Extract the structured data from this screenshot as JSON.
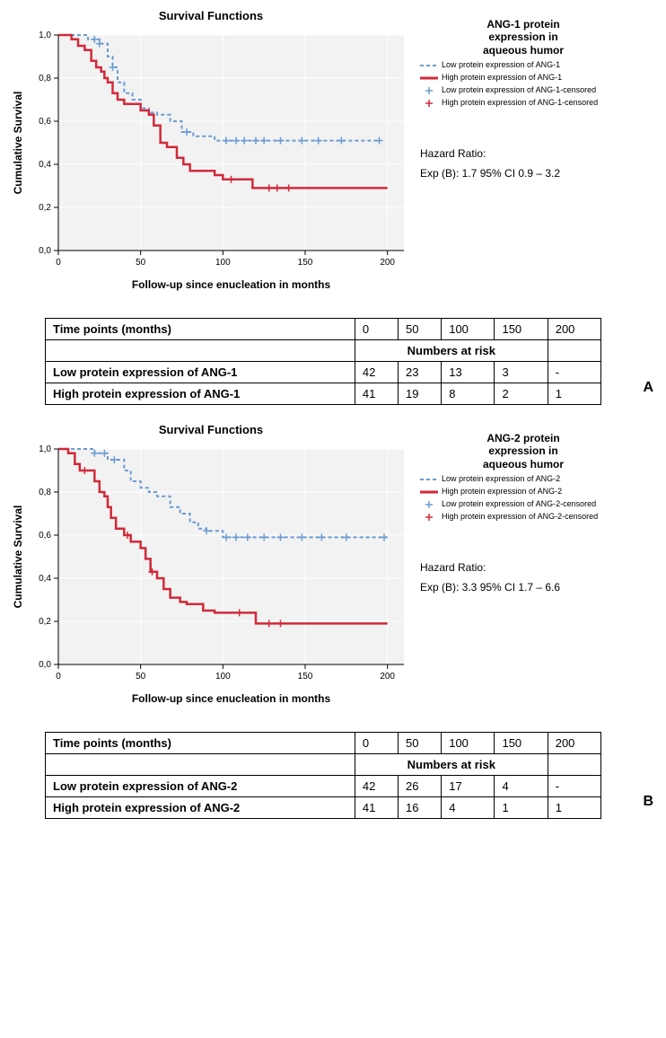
{
  "panels": [
    {
      "letter": "A",
      "chart": {
        "type": "kaplan-meier",
        "title": "Survival Functions",
        "xlabel": "Follow-up since enucleation in months",
        "ylabel": "Cumulative Survival",
        "xlim": [
          0,
          210
        ],
        "ylim": [
          0,
          1.0
        ],
        "xticks": [
          0,
          50,
          100,
          150,
          200
        ],
        "yticks": [
          0.0,
          0.2,
          0.4,
          0.6,
          0.8,
          1.0
        ],
        "background_color": "#f2f2f2",
        "grid_color": "#ffffff",
        "axis_color": "#000000",
        "title_fontsize": 13,
        "label_fontsize": 12,
        "tick_fontsize": 10,
        "series": [
          {
            "id": "low",
            "color": "#6b9bd1",
            "dash": "4,3",
            "width": 2,
            "steps": [
              [
                0,
                1.0
              ],
              [
                10,
                1.0
              ],
              [
                18,
                0.98
              ],
              [
                22,
                0.98
              ],
              [
                25,
                0.96
              ],
              [
                28,
                0.96
              ],
              [
                30,
                0.9
              ],
              [
                33,
                0.85
              ],
              [
                36,
                0.78
              ],
              [
                40,
                0.73
              ],
              [
                45,
                0.7
              ],
              [
                50,
                0.66
              ],
              [
                55,
                0.64
              ],
              [
                60,
                0.63
              ],
              [
                68,
                0.6
              ],
              [
                75,
                0.55
              ],
              [
                82,
                0.53
              ],
              [
                90,
                0.53
              ],
              [
                95,
                0.51
              ],
              [
                100,
                0.51
              ],
              [
                115,
                0.51
              ],
              [
                118,
                0.51
              ],
              [
                130,
                0.51
              ],
              [
                150,
                0.51
              ],
              [
                170,
                0.51
              ],
              [
                195,
                0.51
              ]
            ],
            "censored": [
              [
                22,
                0.98
              ],
              [
                25,
                0.96
              ],
              [
                33,
                0.85
              ],
              [
                78,
                0.55
              ],
              [
                102,
                0.51
              ],
              [
                108,
                0.51
              ],
              [
                113,
                0.51
              ],
              [
                120,
                0.51
              ],
              [
                125,
                0.51
              ],
              [
                135,
                0.51
              ],
              [
                148,
                0.51
              ],
              [
                158,
                0.51
              ],
              [
                172,
                0.51
              ],
              [
                195,
                0.51
              ]
            ]
          },
          {
            "id": "high",
            "color": "#d12a3a",
            "dash": "none",
            "width": 2.5,
            "steps": [
              [
                0,
                1.0
              ],
              [
                8,
                0.98
              ],
              [
                12,
                0.95
              ],
              [
                16,
                0.93
              ],
              [
                20,
                0.88
              ],
              [
                23,
                0.85
              ],
              [
                26,
                0.83
              ],
              [
                28,
                0.8
              ],
              [
                30,
                0.78
              ],
              [
                33,
                0.73
              ],
              [
                36,
                0.7
              ],
              [
                40,
                0.68
              ],
              [
                50,
                0.65
              ],
              [
                55,
                0.63
              ],
              [
                58,
                0.58
              ],
              [
                62,
                0.5
              ],
              [
                66,
                0.48
              ],
              [
                72,
                0.43
              ],
              [
                76,
                0.4
              ],
              [
                80,
                0.37
              ],
              [
                95,
                0.35
              ],
              [
                100,
                0.33
              ],
              [
                115,
                0.33
              ],
              [
                118,
                0.29
              ],
              [
                145,
                0.29
              ],
              [
                200,
                0.29
              ]
            ],
            "censored": [
              [
                105,
                0.33
              ],
              [
                128,
                0.29
              ],
              [
                133,
                0.29
              ],
              [
                140,
                0.29
              ]
            ]
          }
        ]
      },
      "legend": {
        "title": "ANG-1 protein\nexpression in\naqueous humor",
        "items": [
          {
            "swatch": "line",
            "color": "#6b9bd1",
            "dash": "4,3",
            "width": 2,
            "label": "Low protein expression of ANG-1"
          },
          {
            "swatch": "line",
            "color": "#d12a3a",
            "dash": "none",
            "width": 3,
            "label": "High protein expression of ANG-1"
          },
          {
            "swatch": "tick",
            "color": "#6b9bd1",
            "label": "Low protein expression of ANG-1-censored"
          },
          {
            "swatch": "tick",
            "color": "#d12a3a",
            "label": "High protein expression of ANG-1-censored"
          }
        ]
      },
      "hazard": {
        "label": "Hazard Ratio:",
        "value": "Exp (B): 1.7 95% CI 0.9 – 3.2"
      },
      "table": {
        "header": "Time points (months)",
        "subheader": "Numbers at risk",
        "cols": [
          "0",
          "50",
          "100",
          "150",
          "200"
        ],
        "rows": [
          {
            "label": "Low protein expression of ANG-1",
            "vals": [
              "42",
              "23",
              "13",
              "3",
              "-"
            ]
          },
          {
            "label": "High protein expression of ANG-1",
            "vals": [
              "41",
              "19",
              "8",
              "2",
              "1"
            ]
          }
        ]
      }
    },
    {
      "letter": "B",
      "chart": {
        "type": "kaplan-meier",
        "title": "Survival Functions",
        "xlabel": "Follow-up since enucleation in months",
        "ylabel": "Cumulative Survival",
        "xlim": [
          0,
          210
        ],
        "ylim": [
          0,
          1.0
        ],
        "xticks": [
          0,
          50,
          100,
          150,
          200
        ],
        "yticks": [
          0.0,
          0.2,
          0.4,
          0.6,
          0.8,
          1.0
        ],
        "background_color": "#f2f2f2",
        "grid_color": "#ffffff",
        "axis_color": "#000000",
        "title_fontsize": 13,
        "label_fontsize": 12,
        "tick_fontsize": 10,
        "series": [
          {
            "id": "low",
            "color": "#6b9bd1",
            "dash": "4,3",
            "width": 2,
            "steps": [
              [
                0,
                1.0
              ],
              [
                15,
                1.0
              ],
              [
                22,
                0.98
              ],
              [
                26,
                0.98
              ],
              [
                30,
                0.95
              ],
              [
                40,
                0.9
              ],
              [
                44,
                0.85
              ],
              [
                50,
                0.82
              ],
              [
                55,
                0.8
              ],
              [
                60,
                0.78
              ],
              [
                68,
                0.73
              ],
              [
                74,
                0.7
              ],
              [
                80,
                0.66
              ],
              [
                85,
                0.63
              ],
              [
                90,
                0.62
              ],
              [
                95,
                0.62
              ],
              [
                100,
                0.59
              ],
              [
                110,
                0.59
              ],
              [
                130,
                0.59
              ],
              [
                150,
                0.59
              ],
              [
                175,
                0.59
              ],
              [
                200,
                0.59
              ]
            ],
            "censored": [
              [
                22,
                0.98
              ],
              [
                28,
                0.98
              ],
              [
                34,
                0.95
              ],
              [
                90,
                0.62
              ],
              [
                102,
                0.59
              ],
              [
                108,
                0.59
              ],
              [
                115,
                0.59
              ],
              [
                125,
                0.59
              ],
              [
                135,
                0.59
              ],
              [
                148,
                0.59
              ],
              [
                160,
                0.59
              ],
              [
                175,
                0.59
              ],
              [
                198,
                0.59
              ]
            ]
          },
          {
            "id": "high",
            "color": "#d12a3a",
            "dash": "none",
            "width": 2.5,
            "steps": [
              [
                0,
                1.0
              ],
              [
                6,
                0.98
              ],
              [
                10,
                0.93
              ],
              [
                13,
                0.9
              ],
              [
                20,
                0.9
              ],
              [
                22,
                0.85
              ],
              [
                25,
                0.8
              ],
              [
                28,
                0.78
              ],
              [
                30,
                0.73
              ],
              [
                32,
                0.68
              ],
              [
                35,
                0.63
              ],
              [
                40,
                0.6
              ],
              [
                44,
                0.57
              ],
              [
                50,
                0.54
              ],
              [
                53,
                0.49
              ],
              [
                56,
                0.43
              ],
              [
                60,
                0.4
              ],
              [
                64,
                0.35
              ],
              [
                68,
                0.31
              ],
              [
                74,
                0.29
              ],
              [
                78,
                0.28
              ],
              [
                88,
                0.25
              ],
              [
                95,
                0.24
              ],
              [
                115,
                0.24
              ],
              [
                120,
                0.19
              ],
              [
                150,
                0.19
              ],
              [
                200,
                0.19
              ]
            ],
            "censored": [
              [
                16,
                0.9
              ],
              [
                42,
                0.6
              ],
              [
                57,
                0.43
              ],
              [
                110,
                0.24
              ],
              [
                128,
                0.19
              ],
              [
                135,
                0.19
              ]
            ]
          }
        ]
      },
      "legend": {
        "title": "ANG-2 protein\nexpression in\naqueous humor",
        "items": [
          {
            "swatch": "line",
            "color": "#6b9bd1",
            "dash": "4,3",
            "width": 2,
            "label": "Low protein expression of ANG-2"
          },
          {
            "swatch": "line",
            "color": "#d12a3a",
            "dash": "none",
            "width": 3,
            "label": "High protein expression of ANG-2"
          },
          {
            "swatch": "tick",
            "color": "#6b9bd1",
            "label": "Low protein expression of ANG-2-censored"
          },
          {
            "swatch": "tick",
            "color": "#d12a3a",
            "label": "High protein expression of ANG-2-censored"
          }
        ]
      },
      "hazard": {
        "label": "Hazard Ratio:",
        "value": "Exp (B): 3.3 95% CI 1.7 – 6.6"
      },
      "table": {
        "header": "Time points (months)",
        "subheader": "Numbers at risk",
        "cols": [
          "0",
          "50",
          "100",
          "150",
          "200"
        ],
        "rows": [
          {
            "label": "Low protein expression of ANG-2",
            "vals": [
              "42",
              "26",
              "17",
              "4",
              "-"
            ]
          },
          {
            "label": "High protein expression of ANG-2",
            "vals": [
              "41",
              "16",
              "4",
              "1",
              "1"
            ]
          }
        ]
      }
    }
  ]
}
